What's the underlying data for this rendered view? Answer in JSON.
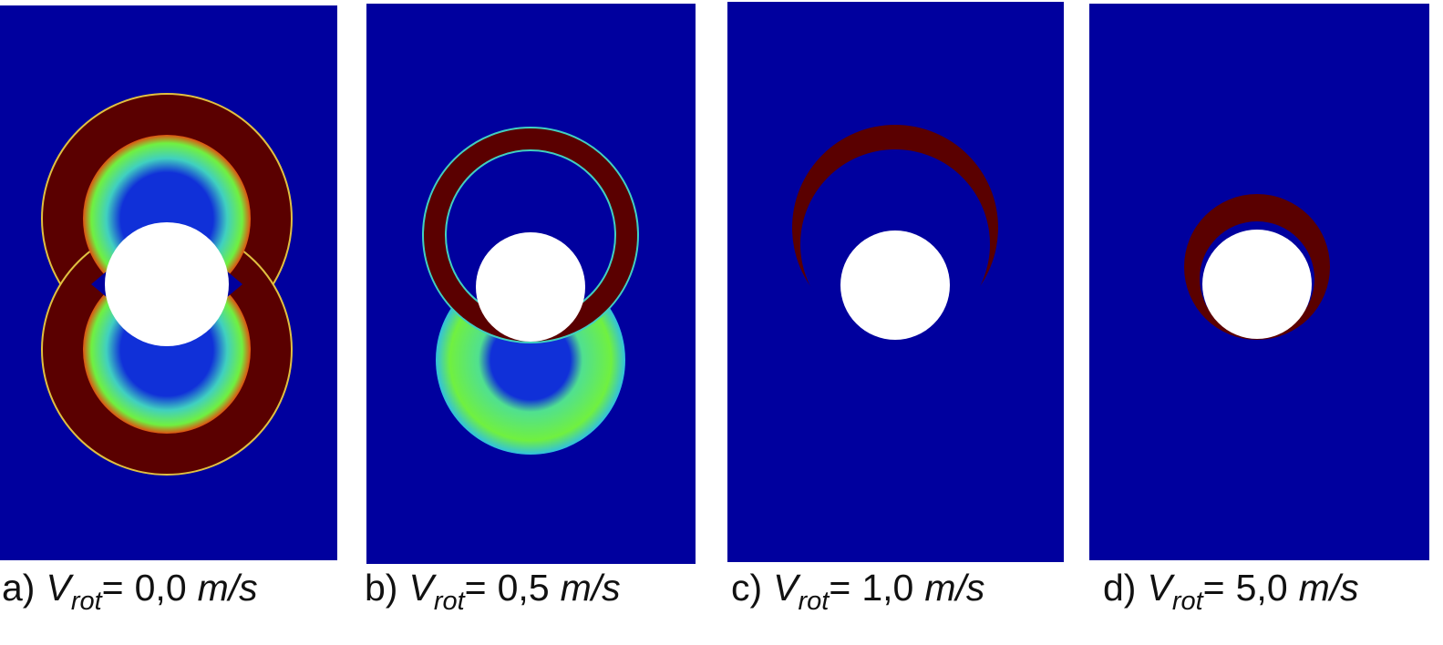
{
  "panels": [
    {
      "label": "a)",
      "symbol": "V",
      "subscript": "rot",
      "relation": "=",
      "value": "0,0",
      "unit": "m/s"
    },
    {
      "label": "b)",
      "symbol": "V",
      "subscript": "rot",
      "relation": "=",
      "value": "0,5",
      "unit": "m/s"
    },
    {
      "label": "c)",
      "symbol": "V",
      "subscript": "rot",
      "relation": "=",
      "value": "1,0",
      "unit": "m/s"
    },
    {
      "label": "d)",
      "symbol": "V",
      "subscript": "rot",
      "relation": "=",
      "value": "5,0",
      "unit": "m/s"
    }
  ]
}
